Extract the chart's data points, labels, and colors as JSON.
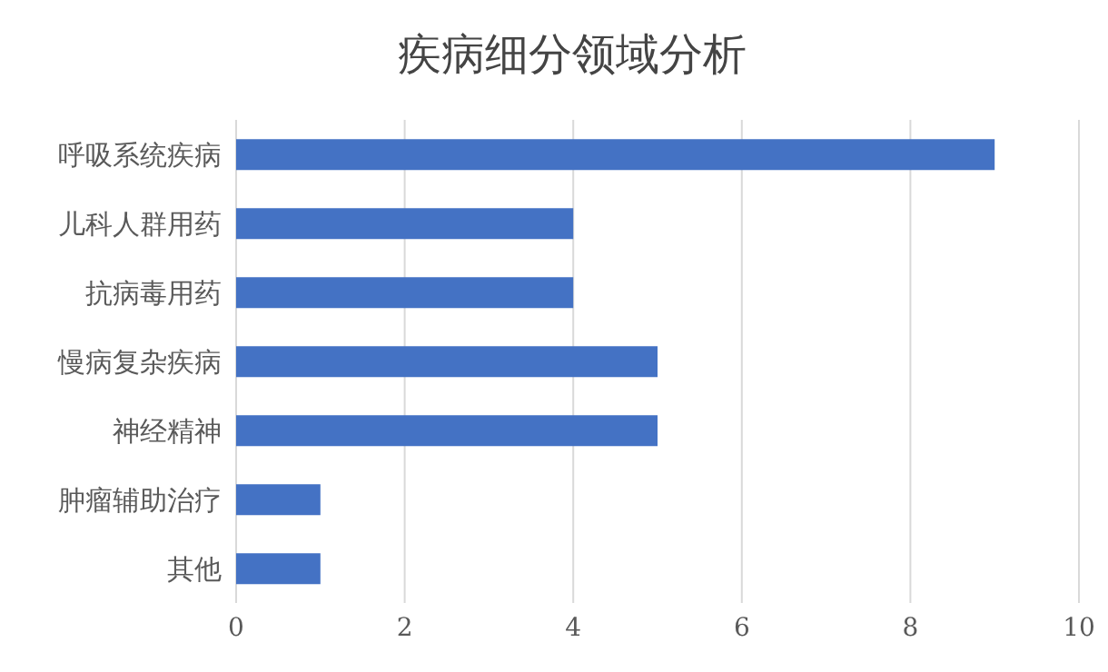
{
  "chart_data": {
    "type": "bar",
    "orientation": "horizontal",
    "title": "疾病细分领域分析",
    "categories": [
      "呼吸系统疾病",
      "儿科人群用药",
      "抗病毒用药",
      "慢病复杂疾病",
      "神经精神",
      "肿瘤辅助治疗",
      "其他"
    ],
    "values": [
      9,
      4,
      4,
      5,
      5,
      1,
      1
    ],
    "color": "#4472c4",
    "xlim": [
      0,
      10
    ],
    "xticks": [
      0,
      2,
      4,
      6,
      8,
      10
    ],
    "grid": "x"
  }
}
